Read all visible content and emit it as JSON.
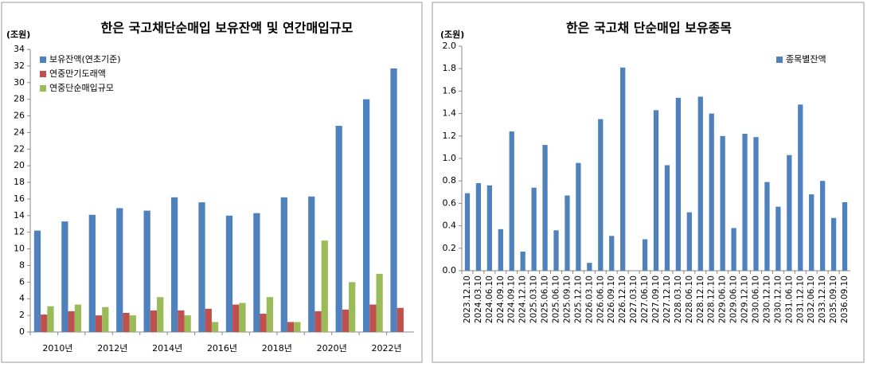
{
  "chart_data": [
    {
      "type": "bar",
      "title": "한은 국고채단순매입 보유잔액 및 연간매입규모",
      "y_label": "(조원)",
      "categories": [
        "2010년",
        null,
        "2012년",
        null,
        "2014년",
        null,
        "2016년",
        null,
        "2018년",
        null,
        "2020년",
        null,
        "2022년",
        null
      ],
      "series": [
        {
          "name": "보유잔액(연초기준)",
          "color": "#4f81bd",
          "values": [
            12.2,
            13.3,
            14.1,
            14.9,
            14.6,
            16.2,
            15.6,
            14.0,
            14.3,
            16.2,
            16.3,
            24.8,
            28.0,
            31.7
          ]
        },
        {
          "name": "연중만기도래액",
          "color": "#c0504d",
          "values": [
            2.1,
            2.5,
            2.0,
            2.3,
            2.6,
            2.6,
            2.8,
            3.3,
            2.2,
            1.2,
            2.5,
            2.7,
            3.3,
            2.9
          ]
        },
        {
          "name": "연중단순매입규모",
          "color": "#9bbb59",
          "values": [
            3.1,
            3.3,
            3.0,
            2.0,
            4.2,
            2.0,
            1.2,
            3.5,
            4.2,
            1.2,
            11.0,
            6.0,
            7.0,
            null
          ]
        }
      ],
      "ylim": [
        0,
        34
      ],
      "yticks": [
        0,
        2,
        4,
        6,
        8,
        10,
        12,
        14,
        16,
        18,
        20,
        22,
        24,
        26,
        28,
        30,
        32,
        34
      ],
      "grid": false,
      "legend": "top-left"
    },
    {
      "type": "bar",
      "title": "한은 국고채 단순매입 보유종목",
      "y_label": "(조원)",
      "categories": [
        "2023.12.10",
        "2024.03.10",
        "2024.06.10",
        "2024.09.10",
        "2024.09.10",
        "2024.12.10",
        "2025.03.10",
        "2025.06.10",
        "2025.06.10",
        "2025.09.10",
        "2025.12.10",
        "2026.03.10",
        "2026.06.10",
        "2026.09.10",
        "2026.12.10",
        "2027.03.10",
        "2027.06.10",
        "2027.09.10",
        "2027.12.10",
        "2028.03.10",
        "2028.06.10",
        "2028.12.10",
        "2028.12.10",
        "2029.06.10",
        "2029.06.10",
        "2029.12.10",
        "2030.06.10",
        "2030.12.10",
        "2030.12.10",
        "2031.06.10",
        "2031.12.10",
        "2032.06.10",
        "2033.12.10",
        "2035.09.10",
        "2036.09.10"
      ],
      "series": [
        {
          "name": "종목별잔액",
          "color": "#4f81bd",
          "values": [
            0.69,
            0.78,
            0.76,
            0.37,
            1.24,
            0.17,
            0.74,
            1.12,
            0.36,
            0.67,
            0.96,
            0.07,
            1.35,
            0.31,
            1.81,
            null,
            0.28,
            1.43,
            0.94,
            1.54,
            0.52,
            1.55,
            1.4,
            1.2,
            0.38,
            1.22,
            1.19,
            0.79,
            0.57,
            1.03,
            1.48,
            0.68,
            0.8,
            0.47,
            0.61
          ]
        }
      ],
      "ylim": [
        0,
        2
      ],
      "yticks": [
        {
          "value": 0,
          "label": "0.0"
        },
        0.2,
        0.4,
        0.6,
        0.8,
        {
          "value": 1,
          "label": "1.0"
        },
        1.2,
        1.4,
        1.6,
        1.8,
        {
          "value": 2,
          "label": "2.0"
        }
      ],
      "grid": false,
      "legend": "top-right"
    }
  ]
}
